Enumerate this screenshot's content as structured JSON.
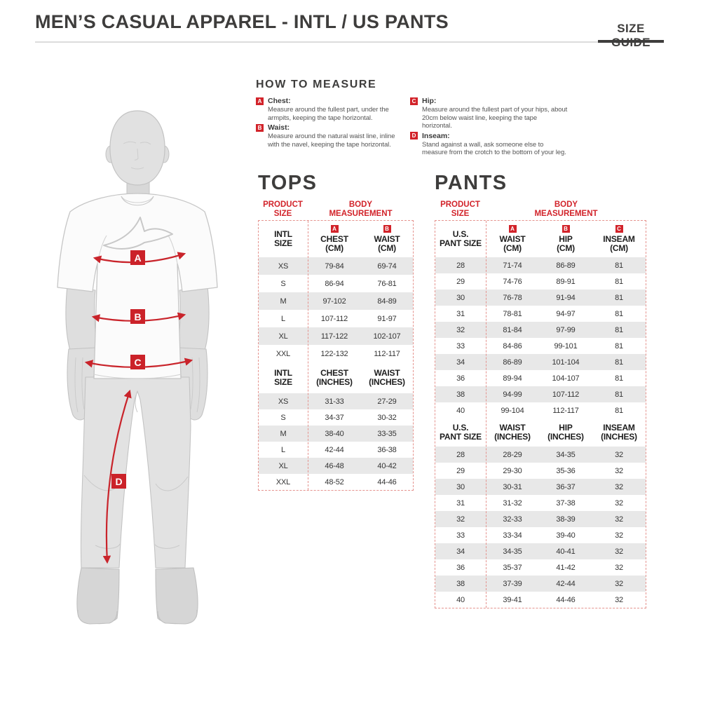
{
  "colors": {
    "accent_red": "#d2232a",
    "title_gray": "#3e3d3c",
    "row_gray": "#e8e8e8"
  },
  "header": {
    "title": "MEN’S CASUAL APPAREL - INTL / US PANTS",
    "size_guide": "SIZE GUIDE"
  },
  "how_to_measure": {
    "title": "HOW TO MEASURE",
    "columns": [
      [
        {
          "badge": "A",
          "label": "Chest:",
          "text": "Measure around the fullest part, under the armpits, keeping the tape horizontal."
        },
        {
          "badge": "B",
          "label": "Waist:",
          "text": "Measure around the natural waist line, inline with the navel, keeping the tape horizontal."
        }
      ],
      [
        {
          "badge": "C",
          "label": "Hip:",
          "text": "Measure around the fullest part of your hips, about 20cm below waist line, keeping the tape horizontal."
        },
        {
          "badge": "D",
          "label": "Inseam:",
          "text": "Stand against a wall, ask someone else to measure from the crotch to the bottom of your leg."
        }
      ]
    ]
  },
  "figure": {
    "markers": [
      "A",
      "B",
      "C",
      "D"
    ]
  },
  "tables": [
    {
      "id": "tops",
      "title": "TOPS",
      "product_size": "PRODUCT\nSIZE",
      "body_measurement": "BODY\nMEASUREMENT",
      "sections": [
        {
          "size_header": "INTL\nSIZE",
          "columns": [
            {
              "badge": "A",
              "label": "CHEST\n(CM)"
            },
            {
              "badge": "B",
              "label": "WAIST\n(CM)"
            }
          ],
          "rows": [
            [
              "XS",
              "79-84",
              "69-74"
            ],
            [
              "S",
              "86-94",
              "76-81"
            ],
            [
              "M",
              "97-102",
              "84-89"
            ],
            [
              "L",
              "107-112",
              "91-97"
            ],
            [
              "XL",
              "117-122",
              "102-107"
            ],
            [
              "XXL",
              "122-132",
              "112-117"
            ]
          ]
        },
        {
          "size_header": "INTL\nSIZE",
          "columns": [
            {
              "label": "CHEST\n(INCHES)"
            },
            {
              "label": "WAIST\n(INCHES)"
            }
          ],
          "rows": [
            [
              "XS",
              "31-33",
              "27-29"
            ],
            [
              "S",
              "34-37",
              "30-32"
            ],
            [
              "M",
              "38-40",
              "33-35"
            ],
            [
              "L",
              "42-44",
              "36-38"
            ],
            [
              "XL",
              "46-48",
              "40-42"
            ],
            [
              "XXL",
              "48-52",
              "44-46"
            ]
          ]
        }
      ]
    },
    {
      "id": "pants",
      "title": "PANTS",
      "product_size": "PRODUCT\nSIZE",
      "body_measurement": "BODY\nMEASUREMENT",
      "sections": [
        {
          "size_header": "U.S.\nPANT SIZE",
          "columns": [
            {
              "badge": "A",
              "label": "WAIST\n(CM)"
            },
            {
              "badge": "B",
              "label": "HIP\n(CM)"
            },
            {
              "badge": "C",
              "label": "INSEAM\n(CM)"
            }
          ],
          "rows": [
            [
              "28",
              "71-74",
              "86-89",
              "81"
            ],
            [
              "29",
              "74-76",
              "89-91",
              "81"
            ],
            [
              "30",
              "76-78",
              "91-94",
              "81"
            ],
            [
              "31",
              "78-81",
              "94-97",
              "81"
            ],
            [
              "32",
              "81-84",
              "97-99",
              "81"
            ],
            [
              "33",
              "84-86",
              "99-101",
              "81"
            ],
            [
              "34",
              "86-89",
              "101-104",
              "81"
            ],
            [
              "36",
              "89-94",
              "104-107",
              "81"
            ],
            [
              "38",
              "94-99",
              "107-112",
              "81"
            ],
            [
              "40",
              "99-104",
              "112-117",
              "81"
            ]
          ]
        },
        {
          "size_header": "U.S.\nPANT SIZE",
          "columns": [
            {
              "label": "WAIST\n(INCHES)"
            },
            {
              "label": "HIP\n(INCHES)"
            },
            {
              "label": "INSEAM\n(INCHES)"
            }
          ],
          "rows": [
            [
              "28",
              "28-29",
              "34-35",
              "32"
            ],
            [
              "29",
              "29-30",
              "35-36",
              "32"
            ],
            [
              "30",
              "30-31",
              "36-37",
              "32"
            ],
            [
              "31",
              "31-32",
              "37-38",
              "32"
            ],
            [
              "32",
              "32-33",
              "38-39",
              "32"
            ],
            [
              "33",
              "33-34",
              "39-40",
              "32"
            ],
            [
              "34",
              "34-35",
              "40-41",
              "32"
            ],
            [
              "36",
              "35-37",
              "41-42",
              "32"
            ],
            [
              "38",
              "37-39",
              "42-44",
              "32"
            ],
            [
              "40",
              "39-41",
              "44-46",
              "32"
            ]
          ]
        }
      ]
    }
  ]
}
